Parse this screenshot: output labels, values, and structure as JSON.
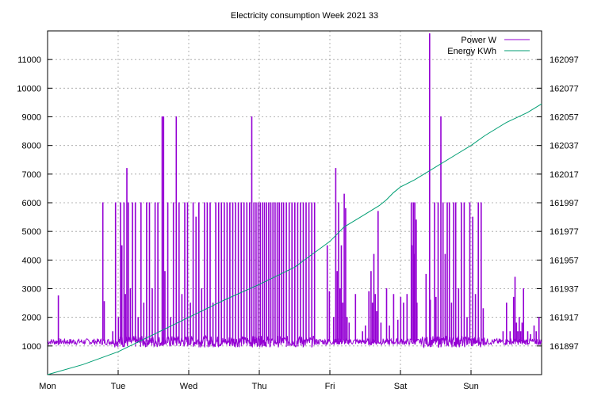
{
  "chart_data": {
    "type": "line",
    "title": "Electricity consumption Week 2021 33",
    "x_tick_labels": [
      "Mon",
      "Tue",
      "Wed",
      "Thu",
      "Fri",
      "Sat",
      "Sun"
    ],
    "xlim_days": [
      0,
      7
    ],
    "y1": {
      "ticks": [
        1000,
        2000,
        3000,
        4000,
        5000,
        6000,
        7000,
        8000,
        9000,
        10000,
        11000
      ],
      "lim": [
        0,
        12000
      ]
    },
    "y2": {
      "ticks": [
        161897,
        161917,
        161937,
        161957,
        161977,
        161997,
        162017,
        162037,
        162057,
        162077,
        162097
      ],
      "lim": [
        161877,
        162117
      ]
    },
    "grid": true,
    "legend_position": "top-right",
    "series": [
      {
        "name": "Power W",
        "axis": "y1",
        "color": "#9400d3",
        "baseline_w": 1150,
        "spikes": [
          {
            "day": 0.15,
            "w": 2750
          },
          {
            "day": 0.78,
            "w": 6000
          },
          {
            "day": 0.8,
            "w": 2550
          },
          {
            "day": 0.92,
            "w": 1500
          },
          {
            "day": 0.96,
            "w": 6000
          },
          {
            "day": 1.0,
            "w": 2000
          },
          {
            "day": 1.03,
            "w": 6000
          },
          {
            "day": 1.05,
            "w": 4500
          },
          {
            "day": 1.08,
            "w": 6000
          },
          {
            "day": 1.1,
            "w": 2800
          },
          {
            "day": 1.12,
            "w": 7200
          },
          {
            "day": 1.14,
            "w": 6000
          },
          {
            "day": 1.17,
            "w": 3000
          },
          {
            "day": 1.2,
            "w": 6000
          },
          {
            "day": 1.24,
            "w": 6000
          },
          {
            "day": 1.28,
            "w": 2000
          },
          {
            "day": 1.32,
            "w": 6000
          },
          {
            "day": 1.36,
            "w": 2500
          },
          {
            "day": 1.4,
            "w": 6000
          },
          {
            "day": 1.44,
            "w": 6000
          },
          {
            "day": 1.48,
            "w": 3000
          },
          {
            "day": 1.52,
            "w": 6000
          },
          {
            "day": 1.56,
            "w": 6000
          },
          {
            "day": 1.62,
            "w": 9000
          },
          {
            "day": 1.64,
            "w": 9000
          },
          {
            "day": 1.66,
            "w": 3600
          },
          {
            "day": 1.7,
            "w": 6000
          },
          {
            "day": 1.74,
            "w": 2000
          },
          {
            "day": 1.78,
            "w": 6000
          },
          {
            "day": 1.82,
            "w": 9000
          },
          {
            "day": 1.86,
            "w": 6000
          },
          {
            "day": 1.9,
            "w": 2800
          },
          {
            "day": 1.94,
            "w": 6000
          },
          {
            "day": 1.98,
            "w": 6000
          },
          {
            "day": 2.02,
            "w": 2500
          },
          {
            "day": 2.06,
            "w": 6000
          },
          {
            "day": 2.1,
            "w": 5500
          },
          {
            "day": 2.14,
            "w": 6000
          },
          {
            "day": 2.18,
            "w": 3000
          },
          {
            "day": 2.22,
            "w": 6000
          },
          {
            "day": 2.26,
            "w": 6000
          },
          {
            "day": 2.3,
            "w": 6000
          },
          {
            "day": 2.34,
            "w": 2500
          },
          {
            "day": 2.38,
            "w": 6000
          },
          {
            "day": 2.42,
            "w": 6000
          },
          {
            "day": 2.46,
            "w": 6000
          },
          {
            "day": 2.5,
            "w": 6000
          },
          {
            "day": 2.54,
            "w": 6000
          },
          {
            "day": 2.58,
            "w": 6000
          },
          {
            "day": 2.62,
            "w": 6000
          },
          {
            "day": 2.66,
            "w": 6000
          },
          {
            "day": 2.7,
            "w": 6000
          },
          {
            "day": 2.74,
            "w": 6000
          },
          {
            "day": 2.78,
            "w": 6000
          },
          {
            "day": 2.82,
            "w": 6000
          },
          {
            "day": 2.86,
            "w": 6000
          },
          {
            "day": 2.89,
            "w": 9000
          },
          {
            "day": 2.92,
            "w": 6000
          },
          {
            "day": 2.95,
            "w": 6000
          },
          {
            "day": 2.98,
            "w": 6000
          },
          {
            "day": 3.01,
            "w": 6000
          },
          {
            "day": 3.04,
            "w": 6000
          },
          {
            "day": 3.07,
            "w": 6000
          },
          {
            "day": 3.1,
            "w": 6000
          },
          {
            "day": 3.13,
            "w": 6000
          },
          {
            "day": 3.16,
            "w": 6000
          },
          {
            "day": 3.19,
            "w": 6000
          },
          {
            "day": 3.22,
            "w": 6000
          },
          {
            "day": 3.25,
            "w": 6000
          },
          {
            "day": 3.28,
            "w": 6000
          },
          {
            "day": 3.31,
            "w": 6000
          },
          {
            "day": 3.34,
            "w": 6000
          },
          {
            "day": 3.38,
            "w": 6000
          },
          {
            "day": 3.42,
            "w": 6000
          },
          {
            "day": 3.46,
            "w": 6000
          },
          {
            "day": 3.5,
            "w": 6000
          },
          {
            "day": 3.54,
            "w": 6000
          },
          {
            "day": 3.58,
            "w": 6000
          },
          {
            "day": 3.62,
            "w": 6000
          },
          {
            "day": 3.66,
            "w": 6000
          },
          {
            "day": 3.7,
            "w": 6000
          },
          {
            "day": 3.74,
            "w": 6000
          },
          {
            "day": 3.78,
            "w": 6000
          },
          {
            "day": 3.96,
            "w": 4500
          },
          {
            "day": 3.99,
            "w": 2900
          },
          {
            "day": 4.05,
            "w": 2000
          },
          {
            "day": 4.08,
            "w": 7200
          },
          {
            "day": 4.1,
            "w": 3600
          },
          {
            "day": 4.12,
            "w": 6000
          },
          {
            "day": 4.14,
            "w": 3000
          },
          {
            "day": 4.16,
            "w": 4500
          },
          {
            "day": 4.18,
            "w": 2500
          },
          {
            "day": 4.2,
            "w": 6300
          },
          {
            "day": 4.22,
            "w": 5800
          },
          {
            "day": 4.24,
            "w": 2000
          },
          {
            "day": 4.27,
            "w": 1800
          },
          {
            "day": 4.36,
            "w": 2800
          },
          {
            "day": 4.46,
            "w": 1500
          },
          {
            "day": 4.5,
            "w": 1700
          },
          {
            "day": 4.55,
            "w": 2900
          },
          {
            "day": 4.58,
            "w": 3600
          },
          {
            "day": 4.6,
            "w": 2500
          },
          {
            "day": 4.62,
            "w": 4200
          },
          {
            "day": 4.64,
            "w": 2800
          },
          {
            "day": 4.66,
            "w": 2200
          },
          {
            "day": 4.68,
            "w": 5700
          },
          {
            "day": 4.72,
            "w": 1800
          },
          {
            "day": 4.8,
            "w": 3000
          },
          {
            "day": 4.84,
            "w": 1700
          },
          {
            "day": 4.9,
            "w": 2800
          },
          {
            "day": 4.96,
            "w": 1900
          },
          {
            "day": 5.0,
            "w": 2700
          },
          {
            "day": 5.04,
            "w": 2500
          },
          {
            "day": 5.09,
            "w": 2800
          },
          {
            "day": 5.15,
            "w": 6000
          },
          {
            "day": 5.16,
            "w": 4500
          },
          {
            "day": 5.18,
            "w": 6000
          },
          {
            "day": 5.19,
            "w": 4200
          },
          {
            "day": 5.2,
            "w": 6000
          },
          {
            "day": 5.22,
            "w": 5400
          },
          {
            "day": 5.23,
            "w": 2500
          },
          {
            "day": 5.36,
            "w": 3500
          },
          {
            "day": 5.42,
            "w": 2600
          },
          {
            "day": 5.48,
            "w": 6000
          },
          {
            "day": 5.5,
            "w": 2700
          },
          {
            "day": 5.53,
            "w": 6000
          },
          {
            "day": 5.57,
            "w": 9000
          },
          {
            "day": 5.6,
            "w": 6000
          },
          {
            "day": 5.63,
            "w": 4200
          },
          {
            "day": 5.66,
            "w": 6000
          },
          {
            "day": 5.69,
            "w": 6000
          },
          {
            "day": 5.72,
            "w": 2500
          },
          {
            "day": 5.75,
            "w": 6000
          },
          {
            "day": 5.78,
            "w": 6000
          },
          {
            "day": 5.82,
            "w": 3000
          },
          {
            "day": 5.86,
            "w": 6000
          },
          {
            "day": 5.9,
            "w": 6000
          },
          {
            "day": 5.94,
            "w": 2000
          },
          {
            "day": 5.98,
            "w": 6000
          },
          {
            "day": 6.02,
            "w": 5500
          },
          {
            "day": 6.06,
            "w": 2800
          },
          {
            "day": 6.1,
            "w": 6000
          },
          {
            "day": 6.14,
            "w": 6000
          },
          {
            "day": 6.17,
            "w": 2300
          },
          {
            "day": 6.45,
            "w": 1500
          },
          {
            "day": 6.5,
            "w": 2500
          },
          {
            "day": 6.55,
            "w": 1500
          },
          {
            "day": 6.6,
            "w": 2700
          },
          {
            "day": 6.62,
            "w": 3400
          },
          {
            "day": 6.64,
            "w": 1800
          },
          {
            "day": 6.66,
            "w": 1500
          },
          {
            "day": 6.68,
            "w": 2000
          },
          {
            "day": 6.7,
            "w": 1500
          },
          {
            "day": 6.72,
            "w": 1800
          },
          {
            "day": 6.74,
            "w": 3000
          },
          {
            "day": 6.8,
            "w": 1500
          },
          {
            "day": 6.84,
            "w": 1400
          },
          {
            "day": 6.89,
            "w": 1700
          },
          {
            "day": 6.92,
            "w": 1500
          },
          {
            "day": 6.96,
            "w": 2000
          }
        ],
        "peak": {
          "day": 5.41,
          "w": 11900
        }
      },
      {
        "name": "Energy KWh",
        "axis": "y2",
        "color": "#009e73",
        "points": [
          [
            0.0,
            161877
          ],
          [
            0.5,
            161884
          ],
          [
            1.0,
            161893
          ],
          [
            1.5,
            161905
          ],
          [
            2.0,
            161917
          ],
          [
            2.5,
            161929
          ],
          [
            3.0,
            161940
          ],
          [
            3.5,
            161952
          ],
          [
            4.0,
            161970
          ],
          [
            4.1,
            161975
          ],
          [
            4.2,
            161980
          ],
          [
            4.4,
            161986
          ],
          [
            4.7,
            161995
          ],
          [
            4.8,
            161999
          ],
          [
            4.9,
            162004
          ],
          [
            5.0,
            162008
          ],
          [
            5.2,
            162013
          ],
          [
            5.5,
            162022
          ],
          [
            5.8,
            162031
          ],
          [
            6.0,
            162037
          ],
          [
            6.2,
            162044
          ],
          [
            6.5,
            162053
          ],
          [
            6.8,
            162060
          ],
          [
            7.0,
            162066
          ]
        ]
      }
    ]
  }
}
